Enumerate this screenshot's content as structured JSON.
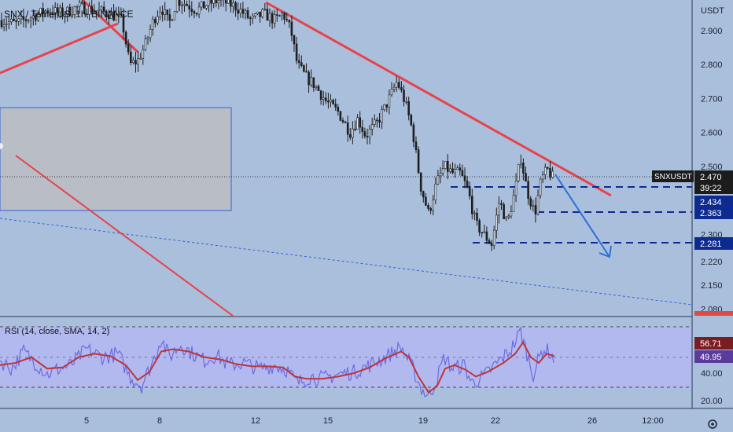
{
  "header": {
    "symbol_title": "SNX / TetherUS, 1h, BINANCE"
  },
  "price_axis": {
    "unit": "USDT",
    "ticks": [
      "2.900",
      "2.800",
      "2.700",
      "2.600",
      "2.500",
      "2.300",
      "2.220",
      "2.150",
      "2.080"
    ]
  },
  "badges": {
    "symbol": "SNXUSDT",
    "last_price": "2.470",
    "countdown": "39:22",
    "level_1": "2.434",
    "level_2": "2.363",
    "level_3": "2.281"
  },
  "rsi": {
    "title": "RSI (14, close, SMA, 14, 2)",
    "value": "56.71",
    "ma_value": "49.95",
    "ticks": [
      "40.00",
      "20.00"
    ]
  },
  "time_axis": {
    "ticks": [
      "5",
      "8",
      "12",
      "15",
      "19",
      "22",
      "26",
      "12:00"
    ]
  },
  "colors": {
    "background": "#a9bfdc",
    "trendline": "#e8424a",
    "level_line": "#0d2a8f",
    "arrow": "#2f6fd6",
    "rsi_line": "#6b6ce0",
    "rsi_ma": "#c0333b",
    "candle": "#1e1e1e"
  },
  "chart_data": {
    "type": "candlestick",
    "price_range": [
      2.06,
      2.99
    ],
    "rsi_range": [
      10,
      90
    ],
    "trend_path": [
      [
        0,
        2.93
      ],
      [
        20,
        2.92
      ],
      [
        40,
        2.94
      ],
      [
        60,
        2.96
      ],
      [
        80,
        2.95
      ],
      [
        100,
        2.97
      ],
      [
        120,
        2.96
      ],
      [
        140,
        2.95
      ],
      [
        155,
        2.93
      ],
      [
        165,
        2.8
      ],
      [
        175,
        2.81
      ],
      [
        185,
        2.86
      ],
      [
        195,
        2.93
      ],
      [
        205,
        2.97
      ],
      [
        215,
        2.92
      ],
      [
        225,
        2.99
      ],
      [
        235,
        2.98
      ],
      [
        250,
        2.96
      ],
      [
        265,
        2.98
      ],
      [
        280,
        2.99
      ],
      [
        300,
        2.97
      ],
      [
        320,
        2.93
      ],
      [
        335,
        2.95
      ],
      [
        350,
        2.93
      ],
      [
        360,
        2.95
      ],
      [
        370,
        2.9
      ],
      [
        378,
        2.8
      ],
      [
        390,
        2.76
      ],
      [
        400,
        2.74
      ],
      [
        415,
        2.69
      ],
      [
        430,
        2.66
      ],
      [
        445,
        2.6
      ],
      [
        455,
        2.64
      ],
      [
        465,
        2.59
      ],
      [
        480,
        2.63
      ],
      [
        495,
        2.7
      ],
      [
        505,
        2.75
      ],
      [
        515,
        2.69
      ],
      [
        525,
        2.6
      ],
      [
        535,
        2.44
      ],
      [
        545,
        2.36
      ],
      [
        555,
        2.45
      ],
      [
        565,
        2.5
      ],
      [
        575,
        2.48
      ],
      [
        585,
        2.48
      ],
      [
        595,
        2.43
      ],
      [
        605,
        2.33
      ],
      [
        615,
        2.3
      ],
      [
        625,
        2.27
      ],
      [
        635,
        2.4
      ],
      [
        645,
        2.33
      ],
      [
        655,
        2.43
      ],
      [
        662,
        2.53
      ],
      [
        670,
        2.43
      ],
      [
        680,
        2.36
      ],
      [
        688,
        2.46
      ],
      [
        696,
        2.49
      ],
      [
        705,
        2.46
      ]
    ],
    "rsi_path": [
      [
        0,
        52
      ],
      [
        15,
        45
      ],
      [
        30,
        60
      ],
      [
        45,
        50
      ],
      [
        60,
        40
      ],
      [
        75,
        45
      ],
      [
        90,
        48
      ],
      [
        110,
        62
      ],
      [
        130,
        55
      ],
      [
        150,
        58
      ],
      [
        165,
        38
      ],
      [
        180,
        30
      ],
      [
        195,
        52
      ],
      [
        205,
        72
      ],
      [
        215,
        55
      ],
      [
        230,
        66
      ],
      [
        245,
        58
      ],
      [
        260,
        52
      ],
      [
        275,
        57
      ],
      [
        290,
        48
      ],
      [
        310,
        50
      ],
      [
        330,
        45
      ],
      [
        350,
        48
      ],
      [
        365,
        44
      ],
      [
        378,
        32
      ],
      [
        395,
        38
      ],
      [
        410,
        36
      ],
      [
        430,
        40
      ],
      [
        450,
        42
      ],
      [
        470,
        48
      ],
      [
        490,
        55
      ],
      [
        510,
        64
      ],
      [
        525,
        45
      ],
      [
        535,
        28
      ],
      [
        545,
        20
      ],
      [
        555,
        35
      ],
      [
        565,
        55
      ],
      [
        575,
        45
      ],
      [
        590,
        48
      ],
      [
        600,
        32
      ],
      [
        615,
        38
      ],
      [
        625,
        45
      ],
      [
        640,
        55
      ],
      [
        650,
        62
      ],
      [
        662,
        78
      ],
      [
        670,
        58
      ],
      [
        678,
        40
      ],
      [
        690,
        62
      ],
      [
        698,
        60
      ],
      [
        705,
        52
      ]
    ],
    "rsi_ma_path": [
      [
        0,
        48
      ],
      [
        20,
        50
      ],
      [
        40,
        55
      ],
      [
        60,
        45
      ],
      [
        80,
        46
      ],
      [
        100,
        55
      ],
      [
        120,
        58
      ],
      [
        140,
        56
      ],
      [
        160,
        48
      ],
      [
        175,
        35
      ],
      [
        190,
        42
      ],
      [
        205,
        60
      ],
      [
        220,
        62
      ],
      [
        240,
        60
      ],
      [
        260,
        55
      ],
      [
        280,
        53
      ],
      [
        300,
        49
      ],
      [
        320,
        47
      ],
      [
        340,
        47
      ],
      [
        360,
        46
      ],
      [
        375,
        38
      ],
      [
        390,
        36
      ],
      [
        410,
        36
      ],
      [
        430,
        38
      ],
      [
        450,
        41
      ],
      [
        470,
        46
      ],
      [
        490,
        54
      ],
      [
        510,
        60
      ],
      [
        520,
        55
      ],
      [
        532,
        38
      ],
      [
        545,
        24
      ],
      [
        556,
        30
      ],
      [
        566,
        45
      ],
      [
        578,
        48
      ],
      [
        592,
        44
      ],
      [
        605,
        38
      ],
      [
        620,
        42
      ],
      [
        640,
        50
      ],
      [
        655,
        58
      ],
      [
        665,
        68
      ],
      [
        675,
        55
      ],
      [
        685,
        50
      ],
      [
        695,
        58
      ],
      [
        705,
        56
      ]
    ]
  }
}
